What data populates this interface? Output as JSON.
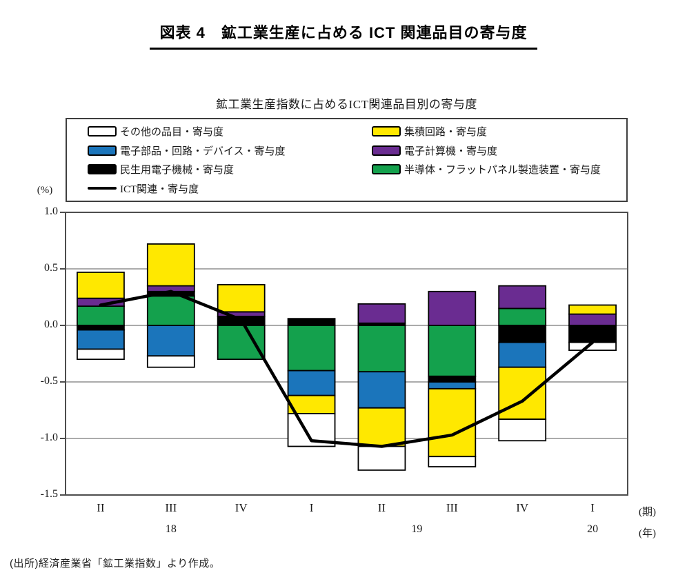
{
  "page": {
    "title": "図表 4　鉱工業生産に占める ICT 関連品目の寄与度",
    "source": "(出所)経済産業省「鉱工業指数」より作成。"
  },
  "chart": {
    "title": "鉱工業生産指数に占めるICT関連品目別の寄与度",
    "unit_label": "(%)",
    "axis_right_labels": {
      "period": "(期)",
      "year": "(年)"
    }
  },
  "legend": {
    "items": [
      {
        "id": "other",
        "label": "その他の品目・寄与度",
        "swatch": "box",
        "color": "#ffffff"
      },
      {
        "id": "ic",
        "label": "集積回路・寄与度",
        "swatch": "box",
        "color": "#ffe800"
      },
      {
        "id": "parts",
        "label": "電子部品・回路・デバイス・寄与度",
        "swatch": "box",
        "color": "#1b75bb"
      },
      {
        "id": "computer",
        "label": "電子計算機・寄与度",
        "swatch": "box",
        "color": "#6a2c91"
      },
      {
        "id": "consumer",
        "label": "民生用電子機械・寄与度",
        "swatch": "box",
        "color": "#000000"
      },
      {
        "id": "semi",
        "label": "半導体・フラットパネル製造装置・寄与度",
        "swatch": "box",
        "color": "#14a14d"
      },
      {
        "id": "ict_line",
        "label": "ICT関連・寄与度",
        "swatch": "line",
        "color": "#000000"
      }
    ]
  },
  "chart_data": {
    "type": "stacked-bar+line",
    "title": "鉱工業生産指数に占めるICT関連品目別の寄与度",
    "ylabel": "(%)",
    "ylim": [
      -1.5,
      1.0
    ],
    "yticks": [
      "1.0",
      "0.5",
      "0.0",
      "-0.5",
      "-1.0",
      "-1.5"
    ],
    "grid": true,
    "legend_position": "top",
    "categories": [
      "II",
      "III",
      "IV",
      "I",
      "II",
      "III",
      "IV",
      "I"
    ],
    "year_labels": [
      {
        "text": "18",
        "index": 1
      },
      {
        "text": "19",
        "index": 4.5
      },
      {
        "text": "20",
        "index": 7
      }
    ],
    "series_names": {
      "other": "その他の品目・寄与度",
      "ic": "集積回路・寄与度",
      "parts": "電子部品・回路・デバイス・寄与度",
      "computer": "電子計算機・寄与度",
      "consumer": "民生用電子機械・寄与度",
      "semi": "半導体・フラットパネル製造装置・寄与度"
    },
    "colors": {
      "other": "#ffffff",
      "ic": "#ffe800",
      "parts": "#1b75bb",
      "computer": "#6a2c91",
      "consumer": "#000000",
      "semi": "#14a14d"
    },
    "bars": [
      {
        "category": "II",
        "year": "18",
        "pos": [
          [
            "semi",
            0.17
          ],
          [
            "computer",
            0.07
          ],
          [
            "ic",
            0.23
          ]
        ],
        "neg": [
          [
            "consumer",
            0.04
          ],
          [
            "parts",
            0.17
          ],
          [
            "other",
            0.09
          ]
        ]
      },
      {
        "category": "III",
        "year": "18",
        "pos": [
          [
            "semi",
            0.26
          ],
          [
            "consumer",
            0.04
          ],
          [
            "computer",
            0.05
          ],
          [
            "ic",
            0.37
          ]
        ],
        "neg": [
          [
            "parts",
            0.27
          ],
          [
            "other",
            0.1
          ]
        ]
      },
      {
        "category": "IV",
        "year": "18",
        "pos": [
          [
            "consumer",
            0.08
          ],
          [
            "computer",
            0.04
          ],
          [
            "ic",
            0.24
          ]
        ],
        "neg": [
          [
            "semi",
            0.3
          ]
        ]
      },
      {
        "category": "I",
        "year": "19",
        "pos": [
          [
            "consumer",
            0.06
          ]
        ],
        "neg": [
          [
            "semi",
            0.4
          ],
          [
            "parts",
            0.22
          ],
          [
            "ic",
            0.16
          ],
          [
            "other",
            0.29
          ]
        ]
      },
      {
        "category": "II",
        "year": "19",
        "pos": [
          [
            "consumer",
            0.02
          ],
          [
            "computer",
            0.17
          ]
        ],
        "neg": [
          [
            "semi",
            0.41
          ],
          [
            "parts",
            0.32
          ],
          [
            "ic",
            0.34
          ],
          [
            "other",
            0.21
          ]
        ]
      },
      {
        "category": "III",
        "year": "19",
        "pos": [
          [
            "computer",
            0.3
          ]
        ],
        "neg": [
          [
            "semi",
            0.45
          ],
          [
            "consumer",
            0.05
          ],
          [
            "parts",
            0.06
          ],
          [
            "ic",
            0.6
          ],
          [
            "other",
            0.09
          ]
        ]
      },
      {
        "category": "IV",
        "year": "19",
        "pos": [
          [
            "semi",
            0.15
          ],
          [
            "computer",
            0.2
          ]
        ],
        "neg": [
          [
            "consumer",
            0.15
          ],
          [
            "parts",
            0.22
          ],
          [
            "ic",
            0.46
          ],
          [
            "other",
            0.19
          ]
        ]
      },
      {
        "category": "I",
        "year": "20",
        "pos": [
          [
            "computer",
            0.1
          ],
          [
            "ic",
            0.08
          ]
        ],
        "neg": [
          [
            "consumer",
            0.15
          ],
          [
            "other",
            0.07
          ]
        ]
      }
    ],
    "line": {
      "name": "ICT関連・寄与度",
      "color": "#000000",
      "values": [
        0.18,
        0.3,
        0.05,
        -1.02,
        -1.07,
        -0.97,
        -0.67,
        -0.15
      ]
    }
  },
  "style": {
    "grid_color": "#8f8f8f",
    "frame_color": "#4d4d4d",
    "bar_border": "#000000"
  }
}
